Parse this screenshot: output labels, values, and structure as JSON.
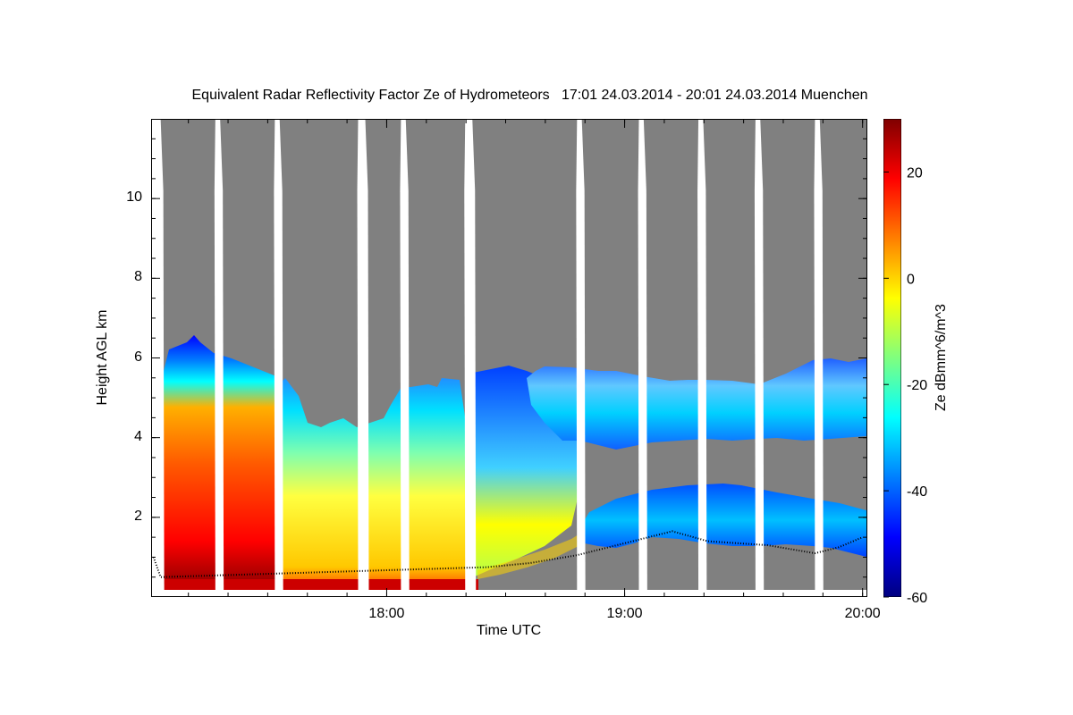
{
  "chart_data": {
    "type": "heatmap",
    "title": "Equivalent Radar Reflectivity Factor Ze of Hydrometeors   17:01 24.03.2014 - 20:01 24.03.2014 Muenchen",
    "xlabel": "Time UTC",
    "ylabel": "Height AGL km",
    "colorbar_label": "Ze dBmm^6/m^3",
    "x_range_hours": [
      17.01,
      20.02
    ],
    "ylim": [
      0,
      12
    ],
    "zlim": [
      -60,
      30
    ],
    "x_ticks": [
      {
        "value": 18.0,
        "label": "18:00"
      },
      {
        "value": 19.0,
        "label": "19:00"
      },
      {
        "value": 20.0,
        "label": "20:00"
      }
    ],
    "y_ticks": [
      {
        "value": 2,
        "label": "2"
      },
      {
        "value": 4,
        "label": "4"
      },
      {
        "value": 6,
        "label": "6"
      },
      {
        "value": 8,
        "label": "8"
      },
      {
        "value": 10,
        "label": "10"
      }
    ],
    "colorbar_ticks": [
      {
        "value": 20,
        "label": "20"
      },
      {
        "value": 0,
        "label": "0"
      },
      {
        "value": -20,
        "label": "-20"
      },
      {
        "value": -40,
        "label": "-40"
      },
      {
        "value": -60,
        "label": "-60"
      }
    ],
    "colormap": [
      "#00007f",
      "#0000ff",
      "#007fff",
      "#00ffff",
      "#7fff7f",
      "#ffff00",
      "#ff7f00",
      "#ff0000",
      "#7f0000"
    ],
    "no_signal_color": "#808080",
    "data_gaps_hours": [
      [
        17.01,
        17.05
      ],
      [
        17.28,
        17.3
      ],
      [
        17.53,
        17.55
      ],
      [
        17.88,
        17.91
      ],
      [
        18.06,
        18.08
      ],
      [
        18.33,
        18.36
      ],
      [
        18.8,
        18.82
      ],
      [
        19.06,
        19.08
      ],
      [
        19.31,
        19.33
      ],
      [
        19.55,
        19.57
      ],
      [
        19.8,
        19.82
      ]
    ],
    "echo_regions": [
      {
        "start": 17.05,
        "end": 17.6,
        "top_km": 6.3,
        "reflectivity_peak_dbz": 25
      },
      {
        "start": 17.6,
        "end": 18.35,
        "top_km": 5.0,
        "reflectivity_peak_dbz": 10
      },
      {
        "start": 18.35,
        "end": 19.0,
        "top_km": 5.6,
        "reflectivity_peak_dbz": 0
      },
      {
        "start": 19.0,
        "end": 20.02,
        "top_km": 5.9,
        "reflectivity_peak_dbz": -15
      }
    ],
    "cloud_base_line": [
      {
        "x": 17.02,
        "y": 1.0
      },
      {
        "x": 17.05,
        "y": 0.5
      },
      {
        "x": 18.42,
        "y": 0.75
      },
      {
        "x": 18.6,
        "y": 0.85
      },
      {
        "x": 18.8,
        "y": 1.05
      },
      {
        "x": 19.0,
        "y": 1.35
      },
      {
        "x": 19.2,
        "y": 1.65
      },
      {
        "x": 19.35,
        "y": 1.4
      },
      {
        "x": 19.6,
        "y": 1.3
      },
      {
        "x": 19.8,
        "y": 1.1
      },
      {
        "x": 19.9,
        "y": 1.25
      },
      {
        "x": 20.0,
        "y": 1.5
      }
    ]
  }
}
